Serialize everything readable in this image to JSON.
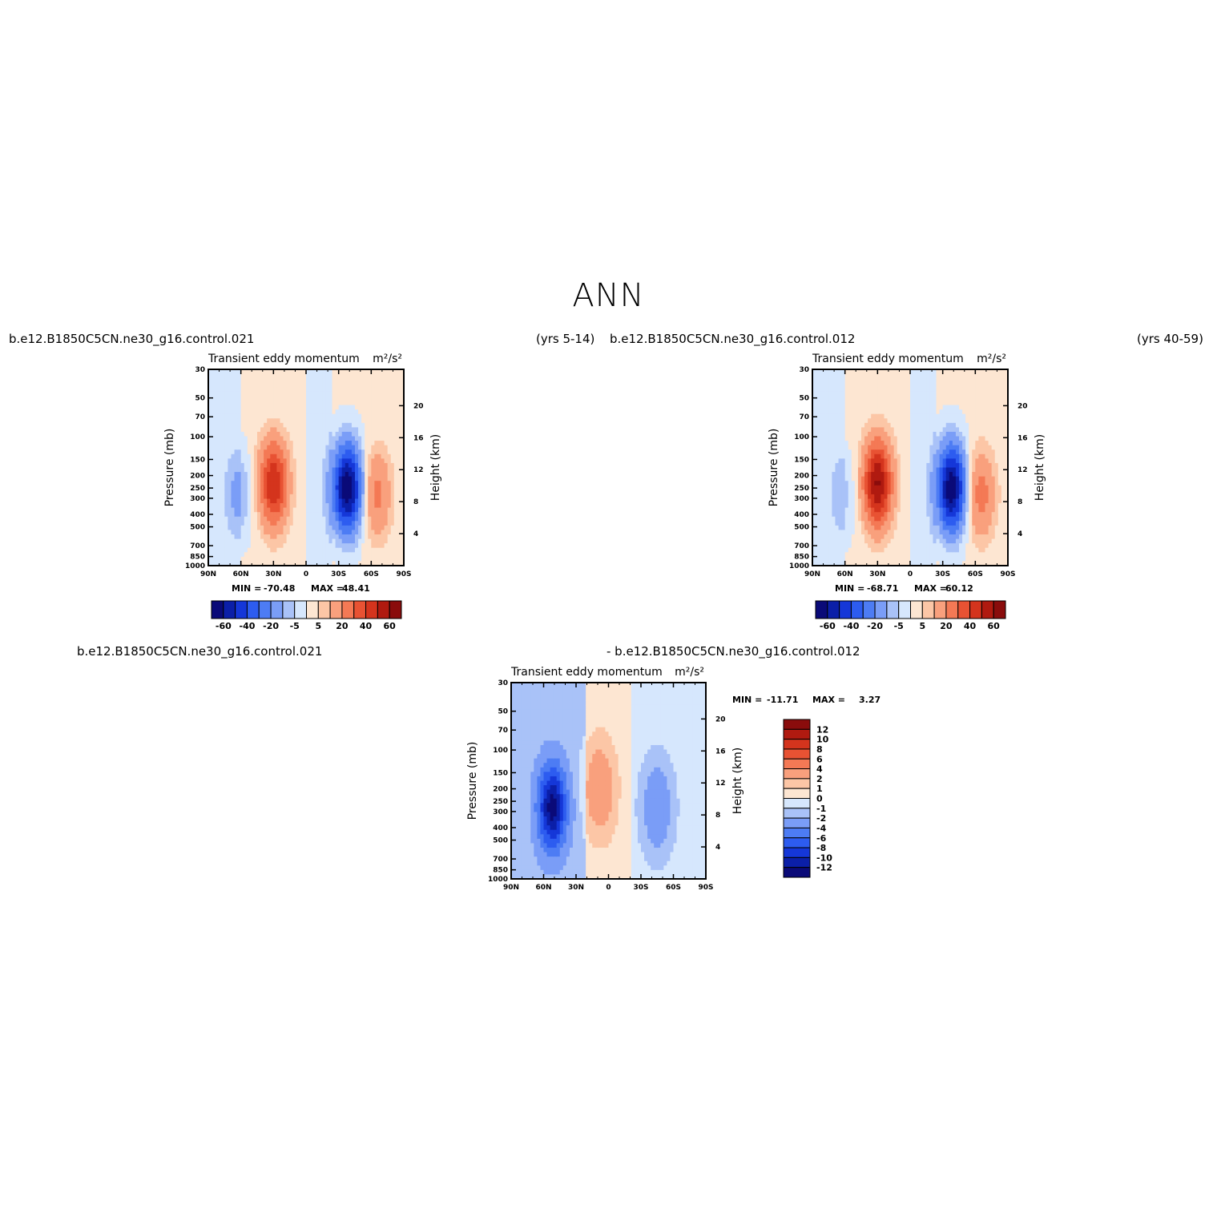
{
  "page": {
    "title": "ANN"
  },
  "headers": {
    "top_left_case": "b.e12.B1850C5CN.ne30_g16.control.021",
    "top_left_years": "(yrs 5-14)",
    "top_right_case": "b.e12.B1850C5CN.ne30_g16.control.012",
    "top_right_years": "(yrs 40-59)",
    "bottom_case_a": "b.e12.B1850C5CN.ne30_g16.control.021",
    "bottom_case_b": "- b.e12.B1850C5CN.ne30_g16.control.012"
  },
  "colors": {
    "abs_scale": [
      "#0a0a78",
      "#0b1fa8",
      "#1537d8",
      "#2d5cf0",
      "#4d7cf4",
      "#7a9df7",
      "#a9c2f8",
      "#d6e7fd",
      "#fde6d2",
      "#fcc6a6",
      "#f9a07d",
      "#f47955",
      "#e85233",
      "#d4341d",
      "#b01a10",
      "#8a0c0c"
    ],
    "diff_scale": [
      "#0a0a78",
      "#0b1fa8",
      "#1537d8",
      "#2d5cf0",
      "#4d7cf4",
      "#7a9df7",
      "#a9c2f8",
      "#d6e7fd",
      "#fde6d2",
      "#fcc6a6",
      "#f9a07d",
      "#f47955",
      "#e85233",
      "#d4341d",
      "#b01a10",
      "#8a0c0c"
    ]
  },
  "chart_data": [
    {
      "type": "heatmap",
      "title": "Transient eddy momentum",
      "units": "m²/s²",
      "ylabel": "Pressure (mb)",
      "ylabel_right": "Height (km)",
      "x_ticks": [
        "90N",
        "60N",
        "30N",
        "0",
        "30S",
        "60S",
        "90S"
      ],
      "y_ticks": [
        "30",
        "50",
        "70",
        "100",
        "150",
        "200",
        "250",
        "300",
        "400",
        "500",
        "700",
        "850",
        "1000"
      ],
      "y2_ticks": [
        "4",
        "8",
        "12",
        "16",
        "20"
      ],
      "stats": {
        "min_label": "MIN =",
        "min": "-70.48",
        "max_label": "MAX =",
        "max": "48.41"
      },
      "colorbar_labels": [
        "-60",
        "-40",
        "-20",
        "-5",
        "5",
        "20",
        "40",
        "60"
      ],
      "features": [
        {
          "lat": 30,
          "p": 230,
          "value": 48.41
        },
        {
          "lat": -38,
          "p": 250,
          "value": -70.48
        },
        {
          "lat": -65,
          "p": 280,
          "value": 22
        },
        {
          "lat": 62,
          "p": 280,
          "value": -12
        }
      ]
    },
    {
      "type": "heatmap",
      "title": "Transient eddy momentum",
      "units": "m²/s²",
      "ylabel": "Pressure (mb)",
      "ylabel_right": "Height (km)",
      "x_ticks": [
        "90N",
        "60N",
        "30N",
        "0",
        "30S",
        "60S",
        "90S"
      ],
      "y_ticks": [
        "30",
        "50",
        "70",
        "100",
        "150",
        "200",
        "250",
        "300",
        "400",
        "500",
        "700",
        "850",
        "1000"
      ],
      "y2_ticks": [
        "4",
        "8",
        "12",
        "16",
        "20"
      ],
      "stats": {
        "min_label": "MIN =",
        "min": "-68.71",
        "max_label": "MAX =",
        "max": "60.12"
      },
      "colorbar_labels": [
        "-60",
        "-40",
        "-20",
        "-5",
        "5",
        "20",
        "40",
        "60"
      ],
      "features": [
        {
          "lat": 30,
          "p": 230,
          "value": 60.12
        },
        {
          "lat": -38,
          "p": 250,
          "value": -68.71
        },
        {
          "lat": -65,
          "p": 280,
          "value": 24
        },
        {
          "lat": 62,
          "p": 280,
          "value": -8
        }
      ]
    },
    {
      "type": "heatmap",
      "title": "Transient eddy momentum",
      "units": "m²/s²",
      "ylabel": "Pressure (mb)",
      "ylabel_right": "Height (km)",
      "x_ticks": [
        "90N",
        "60N",
        "30N",
        "0",
        "30S",
        "60S",
        "90S"
      ],
      "y_ticks": [
        "30",
        "50",
        "70",
        "100",
        "150",
        "200",
        "250",
        "300",
        "400",
        "500",
        "700",
        "850",
        "1000"
      ],
      "y2_ticks": [
        "4",
        "8",
        "12",
        "16",
        "20"
      ],
      "stats": {
        "min_label": "MIN =",
        "min": "-11.71",
        "max_label": "MAX =",
        "max": "3.27"
      },
      "colorbar_labels": [
        "12",
        "10",
        "8",
        "6",
        "4",
        "2",
        "1",
        "0",
        "-1",
        "-2",
        "-4",
        "-6",
        "-8",
        "-10",
        "-12"
      ],
      "features": [
        {
          "lat": 52,
          "p": 280,
          "value": -11.71
        },
        {
          "lat": 8,
          "p": 200,
          "value": 3.27
        },
        {
          "lat": -45,
          "p": 280,
          "value": -3
        }
      ]
    }
  ]
}
